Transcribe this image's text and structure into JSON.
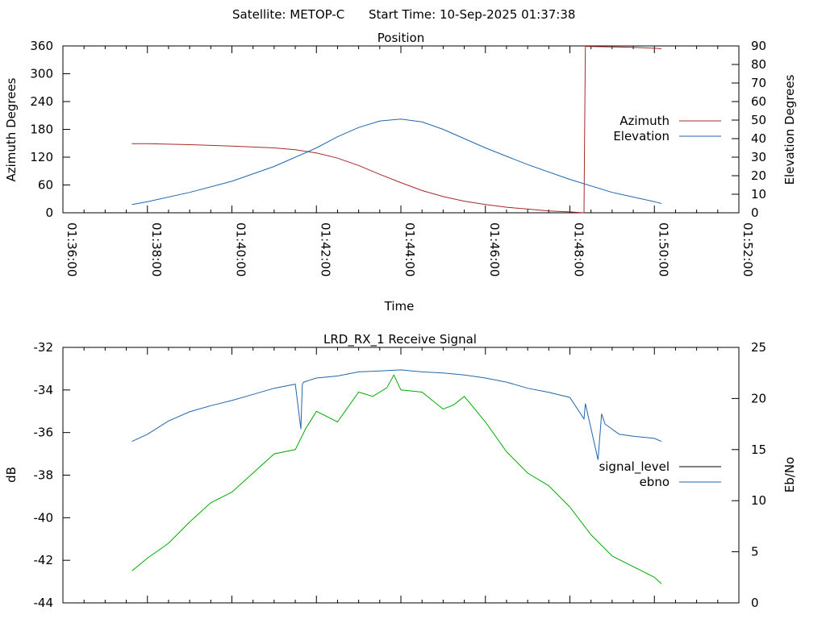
{
  "header": {
    "satellite_label": "Satellite: METOP-C",
    "start_time_label": "Start Time: 10-Sep-2025 01:37:38"
  },
  "colors": {
    "azimuth": "#a52a2a",
    "elevation": "#2166ac",
    "signal_level": "#000000",
    "ebno": "#2166ac",
    "signal_trace": "#00aa00",
    "axis": "#000000"
  },
  "chart_data": [
    {
      "type": "line",
      "title": "Position",
      "xlabel": "Time",
      "ylabel": "Azimuth Degrees",
      "y2label": "Elevation Degrees",
      "xlim": [
        "01:36:00",
        "01:52:00"
      ],
      "ylim": [
        0,
        360
      ],
      "y2lim": [
        0,
        90
      ],
      "x_ticks": [
        "01:36:00",
        "01:38:00",
        "01:40:00",
        "01:42:00",
        "01:44:00",
        "01:46:00",
        "01:48:00",
        "01:50:00",
        "01:52:00"
      ],
      "y_ticks": [
        0,
        60,
        120,
        180,
        240,
        300,
        360
      ],
      "y2_ticks": [
        0,
        10,
        20,
        30,
        40,
        50,
        60,
        70,
        80,
        90
      ],
      "grid": false,
      "legend": "right",
      "series": [
        {
          "name": "Azimuth",
          "axis": "y",
          "x": [
            "01:37:38",
            "01:38:00",
            "01:39:00",
            "01:40:00",
            "01:41:00",
            "01:41:30",
            "01:42:00",
            "01:42:30",
            "01:43:00",
            "01:43:30",
            "01:44:00",
            "01:44:30",
            "01:45:00",
            "01:45:30",
            "01:46:00",
            "01:46:30",
            "01:47:00",
            "01:47:30",
            "01:48:00",
            "01:48:20",
            "01:48:21",
            "01:48:22",
            "01:48:24",
            "01:49:00",
            "01:49:30",
            "01:50:00",
            "01:50:10"
          ],
          "values": [
            149,
            149,
            147,
            144,
            140,
            136,
            129,
            118,
            102,
            83,
            65,
            48,
            35,
            25,
            18,
            12,
            8,
            4,
            2,
            0,
            180,
            359,
            359,
            358,
            357,
            355,
            354
          ]
        },
        {
          "name": "Elevation",
          "axis": "y2",
          "x": [
            "01:37:38",
            "01:38:00",
            "01:39:00",
            "01:40:00",
            "01:41:00",
            "01:42:00",
            "01:42:30",
            "01:43:00",
            "01:43:30",
            "01:44:00",
            "01:44:30",
            "01:45:00",
            "01:45:30",
            "01:46:00",
            "01:47:00",
            "01:48:00",
            "01:49:00",
            "01:50:00",
            "01:50:10"
          ],
          "values": [
            4.5,
            6,
            11,
            17,
            25,
            35,
            41,
            46,
            49.5,
            50.5,
            49,
            45,
            40,
            35,
            26,
            18,
            11,
            6,
            5
          ]
        }
      ]
    },
    {
      "type": "line",
      "title": "LRD_RX_1 Receive Signal",
      "xlabel": "",
      "ylabel": "dB",
      "y2label": "Eb/No",
      "xlim": [
        "01:36:00",
        "01:52:00"
      ],
      "ylim": [
        -44,
        -32
      ],
      "y2lim": [
        0,
        25
      ],
      "y_ticks": [
        -44,
        -42,
        -40,
        -38,
        -36,
        -34,
        -32
      ],
      "y2_ticks": [
        0,
        5,
        10,
        15,
        20,
        25
      ],
      "grid": false,
      "legend": "right",
      "series": [
        {
          "name": "signal_level",
          "axis": "y",
          "x": [
            "01:37:38",
            "01:38:00",
            "01:38:30",
            "01:39:00",
            "01:39:30",
            "01:40:00",
            "01:40:30",
            "01:41:00",
            "01:41:30",
            "01:41:45",
            "01:42:00",
            "01:42:30",
            "01:43:00",
            "01:43:20",
            "01:43:40",
            "01:43:50",
            "01:44:00",
            "01:44:30",
            "01:45:00",
            "01:45:15",
            "01:45:30",
            "01:46:00",
            "01:46:30",
            "01:47:00",
            "01:47:30",
            "01:48:00",
            "01:48:30",
            "01:49:00",
            "01:49:30",
            "01:50:00",
            "01:50:10"
          ],
          "values": [
            -42.5,
            -41.9,
            -41.2,
            -40.2,
            -39.3,
            -38.8,
            -37.9,
            -37.0,
            -36.8,
            -35.8,
            -35.0,
            -35.5,
            -34.1,
            -34.3,
            -33.9,
            -33.3,
            -34.0,
            -34.1,
            -34.9,
            -34.7,
            -34.3,
            -35.5,
            -36.9,
            -37.9,
            -38.5,
            -39.5,
            -40.8,
            -41.8,
            -42.3,
            -42.8,
            -43.1
          ]
        },
        {
          "name": "ebno",
          "axis": "y2",
          "x": [
            "01:37:38",
            "01:38:00",
            "01:38:30",
            "01:39:00",
            "01:39:30",
            "01:40:00",
            "01:40:30",
            "01:41:00",
            "01:41:30",
            "01:41:38",
            "01:41:40",
            "01:41:42",
            "01:42:00",
            "01:42:30",
            "01:43:00",
            "01:43:30",
            "01:44:00",
            "01:44:30",
            "01:45:00",
            "01:45:30",
            "01:46:00",
            "01:46:30",
            "01:47:00",
            "01:47:30",
            "01:48:00",
            "01:48:20",
            "01:48:22",
            "01:48:40",
            "01:48:45",
            "01:48:50",
            "01:49:10",
            "01:49:30",
            "01:50:00",
            "01:50:10"
          ],
          "values": [
            15.8,
            16.5,
            17.8,
            18.7,
            19.3,
            19.8,
            20.4,
            21.0,
            21.4,
            17.0,
            21.4,
            21.6,
            22.0,
            22.2,
            22.6,
            22.7,
            22.8,
            22.6,
            22.5,
            22.3,
            22.0,
            21.6,
            21.0,
            20.6,
            20.1,
            18.0,
            19.5,
            14.0,
            18.5,
            17.5,
            16.5,
            16.3,
            16.1,
            15.8
          ]
        }
      ]
    }
  ]
}
